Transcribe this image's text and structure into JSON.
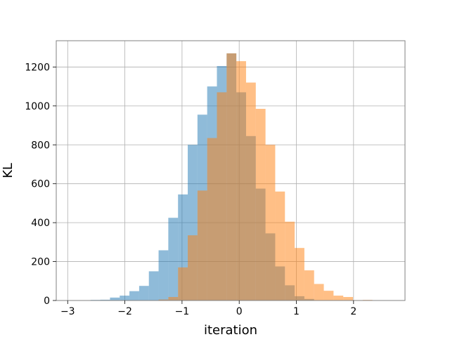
{
  "chart_data": {
    "type": "histogram",
    "title": "",
    "xlabel": "iteration",
    "ylabel": "KL",
    "xlim": [
      -3.2,
      2.9
    ],
    "ylim": [
      0,
      1335
    ],
    "xticks": [
      -3,
      -2,
      -1,
      0,
      1,
      2
    ],
    "yticks": [
      0,
      200,
      400,
      600,
      800,
      1000,
      1200
    ],
    "grid": true,
    "legend": "none",
    "series": [
      {
        "color": "#1f77b4",
        "alpha": 0.5,
        "bins": [
          {
            "x0": -2.6,
            "x1": -2.43,
            "count": 3
          },
          {
            "x0": -2.43,
            "x1": -2.26,
            "count": 4
          },
          {
            "x0": -2.26,
            "x1": -2.09,
            "count": 15
          },
          {
            "x0": -2.09,
            "x1": -1.92,
            "count": 25
          },
          {
            "x0": -1.92,
            "x1": -1.75,
            "count": 48
          },
          {
            "x0": -1.75,
            "x1": -1.58,
            "count": 75
          },
          {
            "x0": -1.58,
            "x1": -1.41,
            "count": 150
          },
          {
            "x0": -1.41,
            "x1": -1.24,
            "count": 258
          },
          {
            "x0": -1.24,
            "x1": -1.07,
            "count": 425
          },
          {
            "x0": -1.07,
            "x1": -0.9,
            "count": 545
          },
          {
            "x0": -0.9,
            "x1": -0.73,
            "count": 800
          },
          {
            "x0": -0.73,
            "x1": -0.56,
            "count": 955
          },
          {
            "x0": -0.56,
            "x1": -0.39,
            "count": 1100
          },
          {
            "x0": -0.39,
            "x1": -0.22,
            "count": 1205
          },
          {
            "x0": -0.22,
            "x1": -0.05,
            "count": 1270
          },
          {
            "x0": -0.05,
            "x1": 0.12,
            "count": 1070
          },
          {
            "x0": 0.12,
            "x1": 0.29,
            "count": 845
          },
          {
            "x0": 0.29,
            "x1": 0.46,
            "count": 575
          },
          {
            "x0": 0.46,
            "x1": 0.63,
            "count": 345
          },
          {
            "x0": 0.63,
            "x1": 0.8,
            "count": 175
          },
          {
            "x0": 0.8,
            "x1": 0.97,
            "count": 78
          },
          {
            "x0": 0.97,
            "x1": 1.14,
            "count": 22
          },
          {
            "x0": 1.14,
            "x1": 1.31,
            "count": 8
          }
        ]
      },
      {
        "color": "#ff7f0e",
        "alpha": 0.5,
        "bins": [
          {
            "x0": -1.41,
            "x1": -1.24,
            "count": 5
          },
          {
            "x0": -1.24,
            "x1": -1.07,
            "count": 18
          },
          {
            "x0": -1.07,
            "x1": -0.9,
            "count": 170
          },
          {
            "x0": -0.9,
            "x1": -0.73,
            "count": 335
          },
          {
            "x0": -0.73,
            "x1": -0.56,
            "count": 565
          },
          {
            "x0": -0.56,
            "x1": -0.39,
            "count": 835
          },
          {
            "x0": -0.39,
            "x1": -0.22,
            "count": 1070
          },
          {
            "x0": -0.22,
            "x1": -0.05,
            "count": 1270
          },
          {
            "x0": -0.05,
            "x1": 0.12,
            "count": 1230
          },
          {
            "x0": 0.12,
            "x1": 0.29,
            "count": 1120
          },
          {
            "x0": 0.29,
            "x1": 0.46,
            "count": 985
          },
          {
            "x0": 0.46,
            "x1": 0.63,
            "count": 800
          },
          {
            "x0": 0.63,
            "x1": 0.8,
            "count": 560
          },
          {
            "x0": 0.8,
            "x1": 0.97,
            "count": 405
          },
          {
            "x0": 0.97,
            "x1": 1.14,
            "count": 270
          },
          {
            "x0": 1.14,
            "x1": 1.31,
            "count": 155
          },
          {
            "x0": 1.31,
            "x1": 1.48,
            "count": 85
          },
          {
            "x0": 1.48,
            "x1": 1.65,
            "count": 50
          },
          {
            "x0": 1.65,
            "x1": 1.82,
            "count": 25
          },
          {
            "x0": 1.82,
            "x1": 1.99,
            "count": 18
          },
          {
            "x0": 1.99,
            "x1": 2.16,
            "count": 2
          },
          {
            "x0": 2.16,
            "x1": 2.33,
            "count": 3
          },
          {
            "x0": 2.33,
            "x1": 2.5,
            "count": 1
          }
        ]
      }
    ]
  }
}
